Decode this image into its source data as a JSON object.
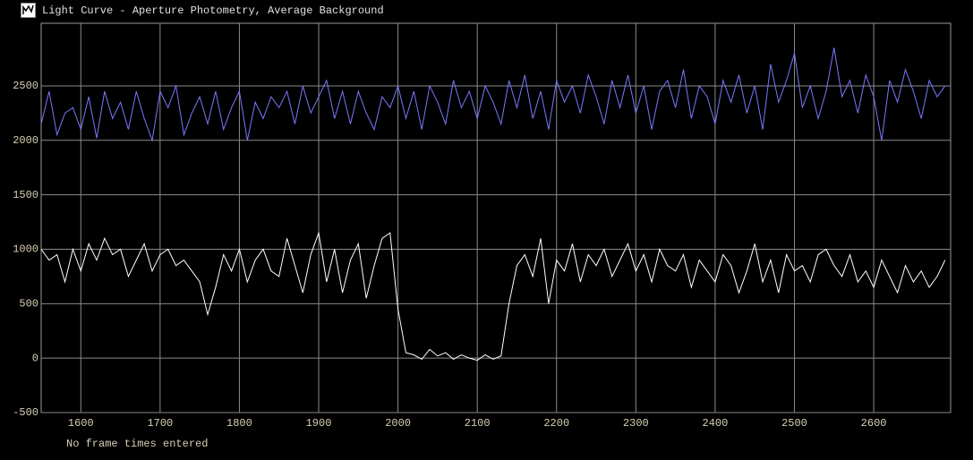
{
  "window": {
    "title": "Light Curve - Aperture Photometry, Average Background"
  },
  "chart_data": {
    "type": "line",
    "note": "No frame times entered",
    "x": [
      1550,
      1560,
      1570,
      1580,
      1590,
      1600,
      1610,
      1620,
      1630,
      1640,
      1650,
      1660,
      1670,
      1680,
      1690,
      1700,
      1710,
      1720,
      1730,
      1740,
      1750,
      1760,
      1770,
      1780,
      1790,
      1800,
      1810,
      1820,
      1830,
      1840,
      1850,
      1860,
      1870,
      1880,
      1890,
      1900,
      1910,
      1920,
      1930,
      1940,
      1950,
      1960,
      1970,
      1980,
      1990,
      2000,
      2010,
      2020,
      2030,
      2040,
      2050,
      2060,
      2070,
      2080,
      2090,
      2100,
      2110,
      2120,
      2130,
      2140,
      2150,
      2160,
      2170,
      2180,
      2190,
      2200,
      2210,
      2220,
      2230,
      2240,
      2250,
      2260,
      2270,
      2280,
      2290,
      2300,
      2310,
      2320,
      2330,
      2340,
      2350,
      2360,
      2370,
      2380,
      2390,
      2400,
      2410,
      2420,
      2430,
      2440,
      2450,
      2460,
      2470,
      2480,
      2490,
      2500,
      2510,
      2520,
      2530,
      2540,
      2550,
      2560,
      2570,
      2580,
      2590,
      2600,
      2610,
      2620,
      2630,
      2640,
      2650,
      2660,
      2670,
      2680,
      2690
    ],
    "series": [
      {
        "color": "#7a78ff",
        "values": [
          2150,
          2450,
          2050,
          2250,
          2300,
          2100,
          2400,
          2020,
          2450,
          2200,
          2350,
          2100,
          2450,
          2200,
          2000,
          2450,
          2300,
          2500,
          2050,
          2250,
          2400,
          2150,
          2450,
          2100,
          2300,
          2450,
          2000,
          2350,
          2200,
          2400,
          2300,
          2450,
          2150,
          2500,
          2250,
          2400,
          2550,
          2200,
          2450,
          2150,
          2450,
          2250,
          2100,
          2400,
          2300,
          2500,
          2200,
          2450,
          2100,
          2500,
          2350,
          2150,
          2550,
          2300,
          2450,
          2200,
          2500,
          2350,
          2150,
          2550,
          2300,
          2600,
          2200,
          2450,
          2100,
          2550,
          2350,
          2500,
          2250,
          2600,
          2400,
          2150,
          2550,
          2300,
          2600,
          2250,
          2500,
          2100,
          2450,
          2550,
          2300,
          2650,
          2200,
          2500,
          2400,
          2150,
          2550,
          2350,
          2600,
          2250,
          2500,
          2100,
          2700,
          2350,
          2550,
          2800,
          2300,
          2500,
          2200,
          2450,
          2850,
          2400,
          2550,
          2250,
          2600,
          2400,
          2000,
          2550,
          2350,
          2650,
          2450,
          2200,
          2550,
          2400,
          2500
        ]
      },
      {
        "color": "#ffffff",
        "values": [
          1000,
          900,
          950,
          700,
          1000,
          800,
          1050,
          900,
          1100,
          950,
          1000,
          750,
          900,
          1050,
          800,
          950,
          1000,
          850,
          900,
          800,
          700,
          400,
          650,
          950,
          800,
          1000,
          700,
          900,
          1000,
          800,
          750,
          1100,
          850,
          600,
          950,
          1150,
          700,
          1000,
          600,
          900,
          1050,
          550,
          850,
          1100,
          1150,
          450,
          50,
          30,
          -10,
          80,
          20,
          50,
          -10,
          30,
          0,
          -20,
          30,
          -10,
          20,
          500,
          850,
          950,
          750,
          1100,
          500,
          900,
          800,
          1050,
          700,
          950,
          850,
          1000,
          750,
          900,
          1050,
          800,
          950,
          700,
          1000,
          850,
          800,
          950,
          650,
          900,
          800,
          700,
          950,
          850,
          600,
          800,
          1050,
          700,
          900,
          600,
          950,
          800,
          850,
          700,
          950,
          1000,
          850,
          750,
          950,
          700,
          800,
          650,
          900,
          750,
          600,
          850,
          700,
          800,
          650,
          750,
          900
        ]
      }
    ],
    "xlim": [
      1550,
      2697
    ],
    "ylim": [
      -500,
      3075
    ],
    "xticks": [
      1600,
      1700,
      1800,
      1900,
      2000,
      2100,
      2200,
      2300,
      2400,
      2500,
      2600
    ],
    "yticks": [
      -500,
      0,
      500,
      1000,
      1500,
      2000,
      2500
    ],
    "grid": true
  }
}
